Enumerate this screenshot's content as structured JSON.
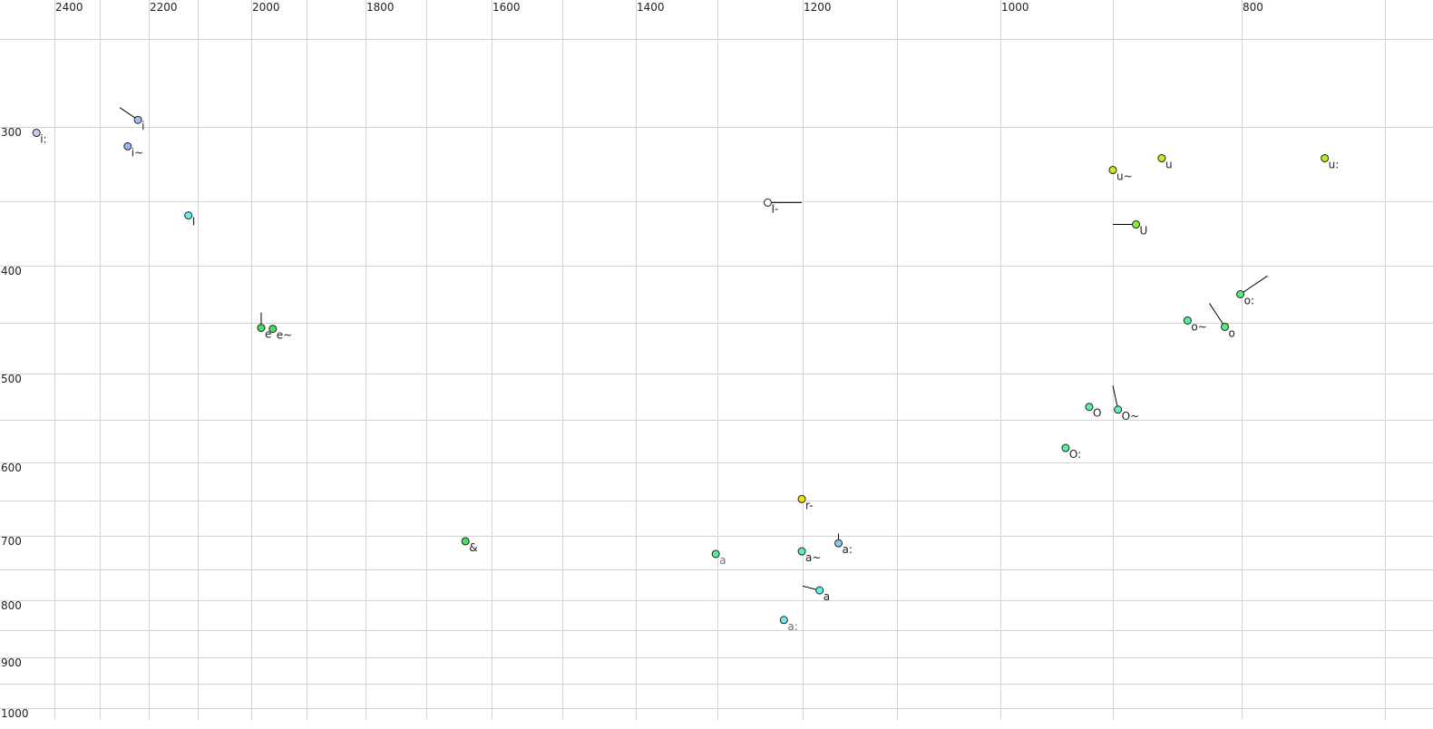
{
  "chart_data": {
    "type": "scatter",
    "title": "",
    "xlabel": "",
    "ylabel": "",
    "x_axis": {
      "reversed": true,
      "position": "top",
      "range": [
        2500,
        700
      ],
      "tick_labels": [
        "2400",
        "2200",
        "2000",
        "1800",
        "1600",
        "1400",
        "1200",
        "1000",
        "800"
      ],
      "grid_step": 100
    },
    "y_axis": {
      "reversed": true,
      "position": "left",
      "range": [
        250,
        1000
      ],
      "tick_labels": [
        "300",
        "400",
        "500",
        "600",
        "700",
        "800",
        "900",
        "1000"
      ],
      "grid_step": 50
    },
    "grid": true,
    "points": [
      {
        "label": "i:",
        "f2": 2443,
        "f1": 304,
        "color": "#cfc6f4"
      },
      {
        "label": "i",
        "f2": 2222,
        "f1": 296,
        "color": "#a6bcf2",
        "tail": [
          2259,
          289
        ]
      },
      {
        "label": "i~",
        "f2": 2243,
        "f1": 313,
        "color": "#96b8f6"
      },
      {
        "label": "I",
        "f2": 2119,
        "f1": 361,
        "color": "#66ece2"
      },
      {
        "label": "e",
        "f2": 1982,
        "f1": 455,
        "color": "#44e25e",
        "tail": [
          1982,
          441
        ]
      },
      {
        "label": "e~",
        "f2": 1961,
        "f1": 456,
        "color": "#44e25e"
      },
      {
        "label": "&",
        "f2": 1640,
        "f1": 708,
        "color": "#44e25e"
      },
      {
        "label": "a",
        "f2": 1302,
        "f1": 727,
        "color": "#5aeaa0",
        "label_color": "#707080"
      },
      {
        "label": "a~",
        "f2": 1201,
        "f1": 723,
        "color": "#5aeac4"
      },
      {
        "label": "a:",
        "f2": 1162,
        "f1": 711,
        "color": "#8ccaf0",
        "tail": [
          1162,
          697
        ]
      },
      {
        "label": "r-",
        "f2": 1201,
        "f1": 648,
        "color": "#f0e000",
        "tail": [
          1201,
          643
        ]
      },
      {
        "label": "a",
        "f2": 1182,
        "f1": 784,
        "color": "#66f0e6",
        "tail": [
          1200,
          777
        ]
      },
      {
        "label": "a:",
        "f2": 1222,
        "f1": 833,
        "color": "#70e8e8",
        "label_color": "#707080"
      },
      {
        "label": "I-",
        "f2": 1241,
        "f1": 351,
        "color": "#ffffff",
        "tail": [
          1201,
          351
        ]
      },
      {
        "label": "u~",
        "f2": 900,
        "f1": 329,
        "color": "#c4f020"
      },
      {
        "label": "u",
        "f2": 862,
        "f1": 321,
        "color": "#c4f020"
      },
      {
        "label": "u:",
        "f2": 742,
        "f1": 321,
        "color": "#b4f020"
      },
      {
        "label": "U",
        "f2": 882,
        "f1": 368,
        "color": "#86f032",
        "tail": [
          900,
          368
        ]
      },
      {
        "label": "o:",
        "f2": 801,
        "f1": 425,
        "color": "#56ea84",
        "tail": [
          782,
          409
        ]
      },
      {
        "label": "o~",
        "f2": 842,
        "f1": 448,
        "color": "#56f090"
      },
      {
        "label": "o",
        "f2": 813,
        "f1": 454,
        "color": "#56ea84",
        "tail": [
          825,
          433
        ]
      },
      {
        "label": "O",
        "f2": 921,
        "f1": 536,
        "color": "#56f0a0"
      },
      {
        "label": "O~",
        "f2": 896,
        "f1": 539,
        "color": "#66f0c6",
        "tail": [
          900,
          513
        ]
      },
      {
        "label": "O:",
        "f2": 942,
        "f1": 583,
        "color": "#56f0a0"
      }
    ]
  }
}
